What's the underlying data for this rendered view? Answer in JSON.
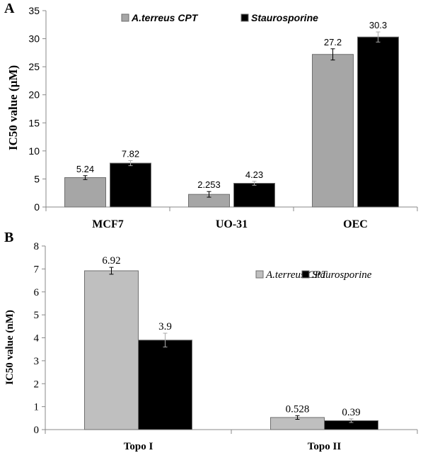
{
  "chart_data": [
    {
      "panel": "A",
      "type": "bar",
      "categories": [
        "MCF7",
        "UO-31",
        "OEC"
      ],
      "series": [
        {
          "name": "A.terreus CPT",
          "values": [
            5.24,
            2.253,
            27.2
          ],
          "errors": [
            0.35,
            0.5,
            1.0
          ],
          "color": "#a6a6a6"
        },
        {
          "name": "Staurosporine",
          "values": [
            7.82,
            4.23,
            30.3
          ],
          "errors": [
            0.45,
            0.35,
            0.9
          ],
          "color": "#000000"
        }
      ],
      "data_labels": [
        [
          "5.24",
          "2.253",
          "27.2"
        ],
        [
          "7.82",
          "4.23",
          "30.3"
        ]
      ],
      "title": "",
      "xlabel": "",
      "ylabel": "IC50 value (µM)",
      "ylim": [
        0,
        35
      ],
      "yticks": [
        0,
        5,
        10,
        15,
        20,
        25,
        30,
        35
      ],
      "grid": false,
      "legend": "top-center"
    },
    {
      "panel": "B",
      "type": "bar",
      "categories": [
        "Topo I",
        "Topo II"
      ],
      "series": [
        {
          "name": "A.terreus CPT",
          "values": [
            6.92,
            0.528
          ],
          "errors": [
            0.15,
            0.08
          ],
          "color": "#bfbfbf"
        },
        {
          "name": "Staurosporine",
          "values": [
            3.9,
            0.39
          ],
          "errors": [
            0.3,
            0.08
          ],
          "color": "#000000"
        }
      ],
      "data_labels": [
        [
          "6.92",
          "0.528"
        ],
        [
          "3.9",
          "0.39"
        ]
      ],
      "title": "",
      "xlabel": "",
      "ylabel": "IC50 value (nM)",
      "ylim": [
        0,
        8
      ],
      "yticks": [
        0,
        1,
        2,
        3,
        4,
        5,
        6,
        7,
        8
      ],
      "grid": false,
      "legend": "top-right"
    }
  ]
}
